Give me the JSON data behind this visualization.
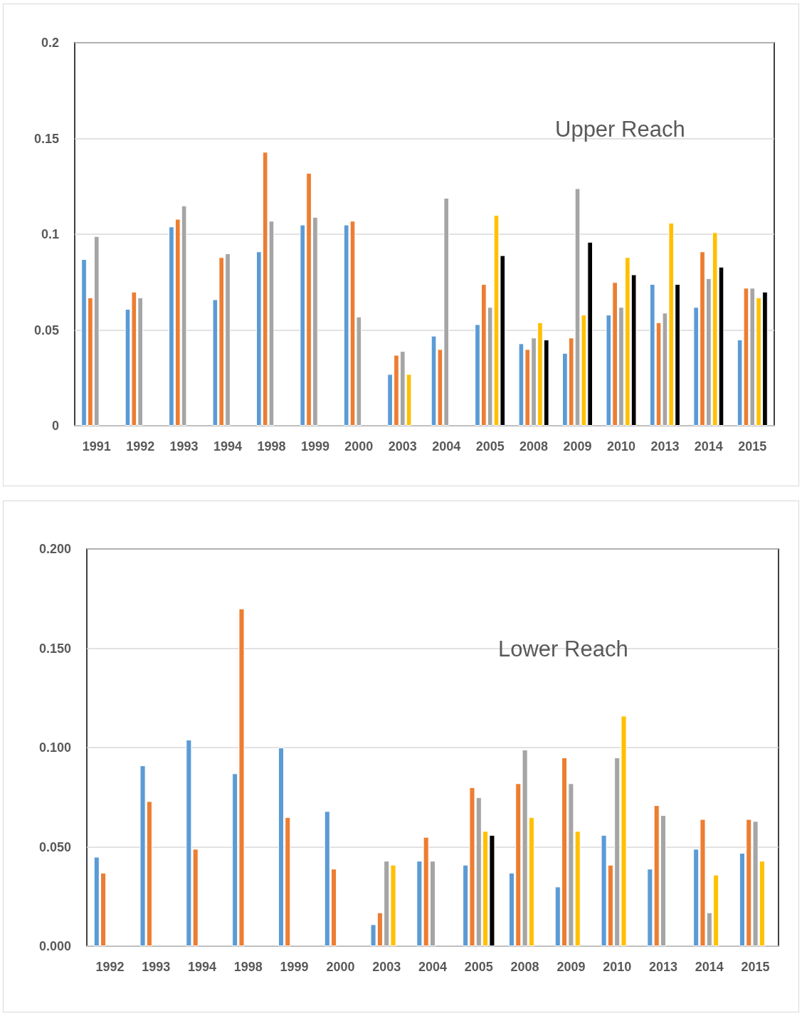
{
  "chart_data": [
    {
      "type": "bar",
      "title": "Upper Reach",
      "categories": [
        "1991",
        "1992",
        "1993",
        "1994",
        "1998",
        "1999",
        "2000",
        "2003",
        "2004",
        "2005",
        "2008",
        "2009",
        "2010",
        "2013",
        "2014",
        "2015"
      ],
      "series": [
        {
          "color": "#5b9bd5",
          "values": [
            0.087,
            0.061,
            0.104,
            0.066,
            0.091,
            0.105,
            0.105,
            0.027,
            0.047,
            0.053,
            0.043,
            0.038,
            0.058,
            0.074,
            0.062,
            0.045
          ]
        },
        {
          "color": "#ed7d31",
          "values": [
            0.067,
            0.07,
            0.108,
            0.088,
            0.143,
            0.132,
            0.107,
            0.037,
            0.04,
            0.074,
            0.04,
            0.046,
            0.075,
            0.054,
            0.091,
            0.072
          ]
        },
        {
          "color": "#a5a5a5",
          "values": [
            0.099,
            0.067,
            0.115,
            0.09,
            0.107,
            0.109,
            0.057,
            0.039,
            0.119,
            0.062,
            0.046,
            0.124,
            0.062,
            0.059,
            0.077,
            0.072
          ]
        },
        {
          "color": "#ffc000",
          "values": [
            null,
            null,
            null,
            null,
            null,
            null,
            null,
            0.027,
            null,
            0.11,
            0.054,
            0.058,
            0.088,
            0.106,
            0.101,
            0.067
          ]
        },
        {
          "color": "#000000",
          "values": [
            null,
            null,
            null,
            null,
            null,
            null,
            null,
            null,
            null,
            0.089,
            0.045,
            0.096,
            0.079,
            0.074,
            0.083,
            0.07
          ]
        }
      ],
      "ylim": [
        0,
        0.2
      ],
      "yticks": [
        0,
        0.05,
        0.1,
        0.15,
        0.2
      ],
      "grid": "y"
    },
    {
      "type": "bar",
      "title": "Lower Reach",
      "categories": [
        "1992",
        "1993",
        "1994",
        "1998",
        "1999",
        "2000",
        "2003",
        "2004",
        "2005",
        "2008",
        "2009",
        "2010",
        "2013",
        "2014",
        "2015"
      ],
      "series": [
        {
          "color": "#5b9bd5",
          "values": [
            0.045,
            0.091,
            0.104,
            0.087,
            0.1,
            0.068,
            0.011,
            0.043,
            0.041,
            0.037,
            0.03,
            0.056,
            0.039,
            0.049,
            0.047
          ]
        },
        {
          "color": "#ed7d31",
          "values": [
            0.037,
            0.073,
            0.049,
            0.17,
            0.065,
            0.039,
            0.017,
            0.055,
            0.08,
            0.082,
            0.095,
            0.041,
            0.071,
            0.064,
            0.064
          ]
        },
        {
          "color": "#a5a5a5",
          "values": [
            null,
            null,
            null,
            null,
            null,
            null,
            0.043,
            0.043,
            0.075,
            0.099,
            0.082,
            0.095,
            0.066,
            0.017,
            0.063
          ]
        },
        {
          "color": "#ffc000",
          "values": [
            null,
            null,
            null,
            null,
            null,
            null,
            0.041,
            null,
            0.058,
            0.065,
            0.058,
            0.116,
            null,
            0.036,
            0.043
          ]
        },
        {
          "color": "#000000",
          "values": [
            null,
            null,
            null,
            null,
            null,
            null,
            null,
            null,
            0.056,
            null,
            null,
            null,
            null,
            null,
            null
          ]
        }
      ],
      "ylim": [
        0,
        0.2
      ],
      "yticks": [
        {
          "value": 0,
          "label": "0.000"
        },
        {
          "value": 0.05,
          "label": "0.050"
        },
        {
          "value": 0.1,
          "label": "0.100"
        },
        {
          "value": 0.15,
          "label": "0.150"
        },
        {
          "value": 0.2,
          "label": "0.200"
        }
      ],
      "grid": "y"
    }
  ]
}
